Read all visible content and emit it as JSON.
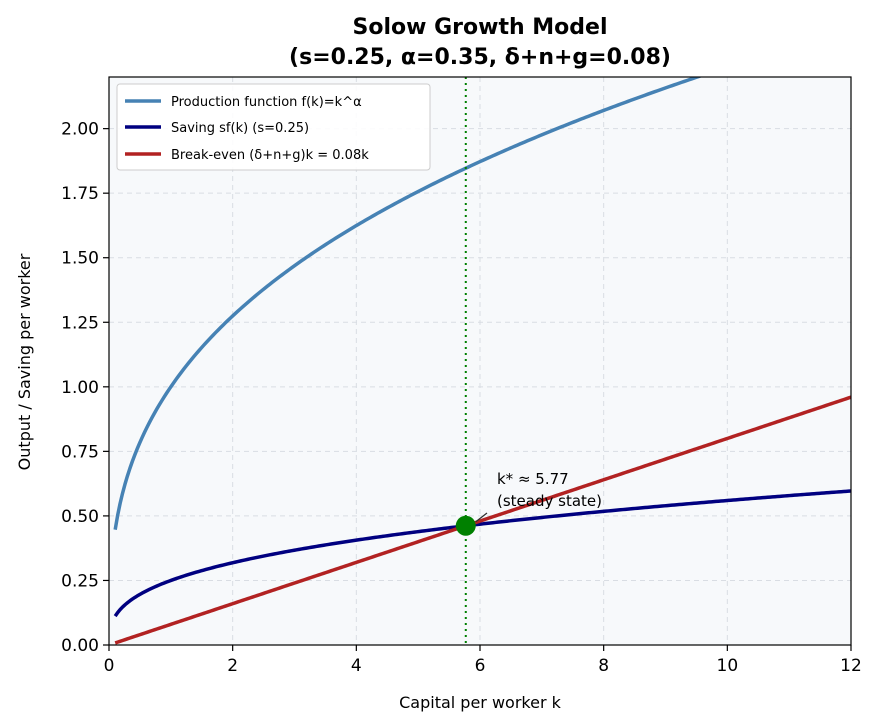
{
  "chart_data": {
    "type": "line",
    "title_line1": "Solow Growth Model",
    "title_line2": "(s=0.25, α=0.35, δ+n+g=0.08)",
    "xlabel": "Capital per worker k",
    "ylabel": "Output / Saving per worker",
    "xlim": [
      0,
      12
    ],
    "ylim": [
      0,
      2.2
    ],
    "x_ticks": [
      "0",
      "2",
      "4",
      "6",
      "8",
      "10",
      "12"
    ],
    "y_ticks": [
      "0.00",
      "0.25",
      "0.50",
      "0.75",
      "1.00",
      "1.25",
      "1.50",
      "1.75",
      "2.00"
    ],
    "grid": true,
    "legend_position": "upper-left",
    "params": {
      "s": 0.25,
      "alpha": 0.35,
      "breakeven_rate": 0.08
    },
    "series": [
      {
        "name": "Production function f(k)=k^α",
        "color": "#4682B4",
        "formula": "k^0.35",
        "k_range": [
          0.1,
          12
        ]
      },
      {
        "name": "Saving sf(k)  (s=0.25)",
        "color": "#000080",
        "formula": "0.25*k^0.35",
        "k_range": [
          0.1,
          12
        ]
      },
      {
        "name": "Break-even (δ+n+g)k = 0.08k",
        "color": "#B22222",
        "formula": "0.08*k",
        "k_range": [
          0.1,
          12
        ]
      }
    ],
    "steady_state": {
      "k": 5.77,
      "y": 0.462,
      "color": "#008000",
      "label_line1": "k* ≈ 5.77",
      "label_line2": "(steady state)"
    }
  }
}
